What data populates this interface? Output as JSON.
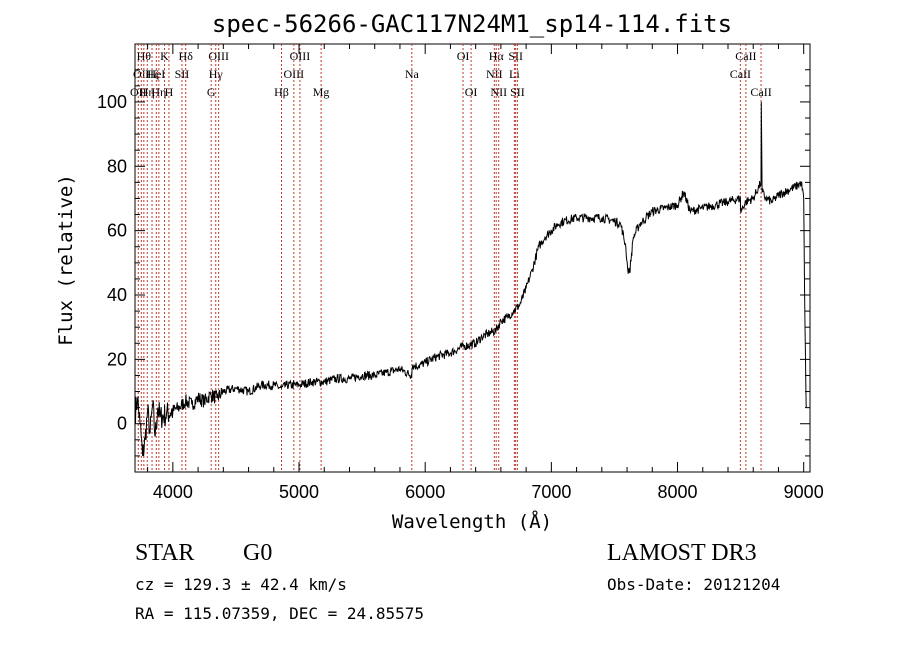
{
  "chart_data": {
    "type": "line",
    "title": "spec-56266-GAC117N24M1_sp14-114.fits",
    "xlabel": "Wavelength (Å)",
    "ylabel": "Flux (relative)",
    "xlim": [
      3700,
      9050
    ],
    "ylim": [
      -15,
      118
    ],
    "xticks": [
      4000,
      5000,
      6000,
      7000,
      8000,
      9000
    ],
    "yticks": [
      0,
      20,
      40,
      60,
      80,
      100
    ],
    "series": [
      {
        "name": "flux",
        "x": [
          3700,
          3720,
          3740,
          3760,
          3780,
          3800,
          3820,
          3840,
          3860,
          3880,
          3900,
          3950,
          4000,
          4050,
          4100,
          4150,
          4200,
          4250,
          4300,
          4350,
          4400,
          4500,
          4600,
          4700,
          4800,
          4860,
          4900,
          5000,
          5100,
          5200,
          5300,
          5400,
          5500,
          5600,
          5700,
          5800,
          5890,
          5900,
          5950,
          6000,
          6100,
          6200,
          6300,
          6400,
          6450,
          6500,
          6563,
          6600,
          6650,
          6700,
          6750,
          6800,
          6850,
          6900,
          6950,
          7000,
          7050,
          7100,
          7200,
          7300,
          7400,
          7500,
          7550,
          7590,
          7605,
          7620,
          7650,
          7700,
          7750,
          7800,
          7900,
          8000,
          8050,
          8100,
          8200,
          8300,
          8400,
          8498,
          8500,
          8542,
          8600,
          8662,
          8664,
          8670,
          8700,
          8750,
          8800,
          8850,
          8900,
          8950,
          8980,
          9000,
          9010,
          9020
        ],
        "y": [
          3,
          8,
          0,
          -10,
          -5,
          4,
          -3,
          6,
          -4,
          5,
          2,
          3,
          4,
          5,
          7,
          6,
          8,
          7,
          9,
          8,
          10,
          11,
          10,
          12,
          12,
          11,
          12,
          12,
          13,
          13,
          14,
          14,
          15,
          15,
          16,
          17,
          15,
          18,
          18,
          19,
          21,
          22,
          24,
          25,
          27,
          28,
          29,
          32,
          33,
          35,
          37,
          42,
          48,
          55,
          58,
          60,
          62,
          63,
          64,
          64,
          64,
          63,
          62,
          55,
          48,
          47,
          58,
          62,
          64,
          66,
          67,
          68,
          72,
          66,
          67,
          68,
          69,
          70,
          66,
          69,
          70,
          75,
          100,
          72,
          70,
          69,
          71,
          72,
          73,
          74,
          75,
          70,
          30,
          5
        ]
      }
    ],
    "annotations": [
      {
        "w": 3726,
        "label": "OII",
        "row": 3
      },
      {
        "w": 3750,
        "label": "OII",
        "row": 2
      },
      {
        "w": 3770,
        "label": "Hθ",
        "row": 1
      },
      {
        "w": 3797,
        "label": "Hη",
        "row": 3
      },
      {
        "w": 3835,
        "label": "Hζ",
        "row": 2
      },
      {
        "w": 3869,
        "label": "HeI",
        "row": 2
      },
      {
        "w": 3889,
        "label": "Hη",
        "row": 3
      },
      {
        "w": 3934,
        "label": "K",
        "row": 1
      },
      {
        "w": 3969,
        "label": "H",
        "row": 3
      },
      {
        "w": 4072,
        "label": "SII",
        "row": 2
      },
      {
        "w": 4102,
        "label": "Hδ",
        "row": 1
      },
      {
        "w": 4304,
        "label": "G",
        "row": 3
      },
      {
        "w": 4340,
        "label": "Hγ",
        "row": 2
      },
      {
        "w": 4363,
        "label": "OIII",
        "row": 1
      },
      {
        "w": 4861,
        "label": "Hβ",
        "row": 3
      },
      {
        "w": 4959,
        "label": "OIII",
        "row": 2
      },
      {
        "w": 5007,
        "label": "OIII",
        "row": 1
      },
      {
        "w": 5175,
        "label": "Mg",
        "row": 3
      },
      {
        "w": 5894,
        "label": "Na",
        "row": 2
      },
      {
        "w": 6300,
        "label": "OI",
        "row": 1
      },
      {
        "w": 6364,
        "label": "OI",
        "row": 3
      },
      {
        "w": 6548,
        "label": "NII",
        "row": 2
      },
      {
        "w": 6563,
        "label": "Hα",
        "row": 1
      },
      {
        "w": 6583,
        "label": "NII",
        "row": 3
      },
      {
        "w": 6707,
        "label": "Li",
        "row": 2
      },
      {
        "w": 6717,
        "label": "SII",
        "row": 1
      },
      {
        "w": 6731,
        "label": "SII",
        "row": 3
      },
      {
        "w": 8498,
        "label": "CaII",
        "row": 2
      },
      {
        "w": 8542,
        "label": "CaII",
        "row": 1
      },
      {
        "w": 8662,
        "label": "CaII",
        "row": 3
      }
    ]
  },
  "info": {
    "object_class": "STAR",
    "subclass": "G0",
    "survey": "LAMOST DR3",
    "cz": "cz = 129.3 ± 42.4 km/s",
    "obs_date": "Obs-Date: 20121204",
    "coords": "RA = 115.07359, DEC =  24.85575"
  }
}
